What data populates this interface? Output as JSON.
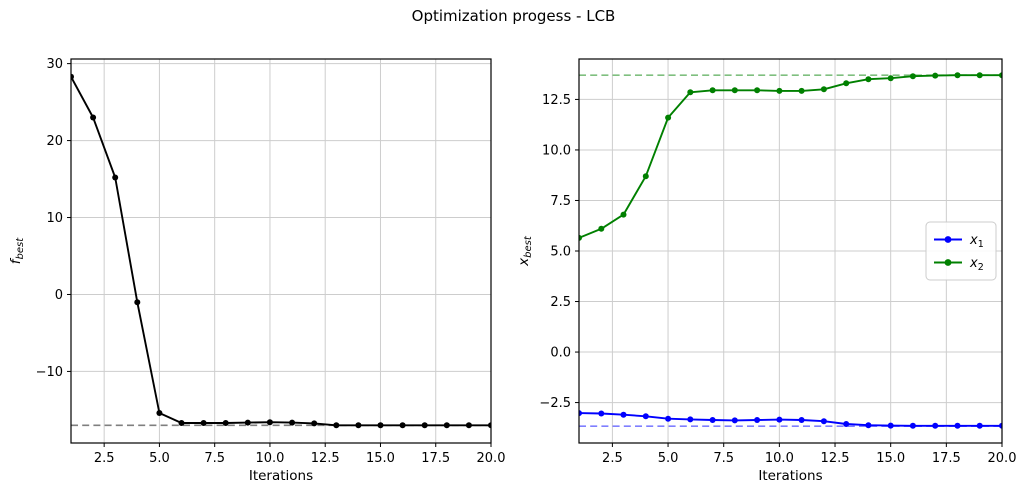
{
  "title": "Optimization progess - LCB",
  "chart_data": [
    {
      "type": "line",
      "name": "fbest-panel",
      "xlabel": "Iterations",
      "ylabel": "f_best",
      "x": [
        1,
        2,
        3,
        4,
        5,
        6,
        7,
        8,
        9,
        10,
        11,
        12,
        13,
        14,
        15,
        16,
        17,
        18,
        19,
        20
      ],
      "series": [
        {
          "name": "f_best",
          "color": "#000000",
          "values": [
            28.3,
            23.0,
            15.2,
            -1.0,
            -15.4,
            -16.7,
            -16.7,
            -16.7,
            -16.65,
            -16.6,
            -16.65,
            -16.75,
            -17.0,
            -17.0,
            -17.0,
            -17.0,
            -17.0,
            -17.0,
            -17.0,
            -17.0
          ]
        }
      ],
      "hlines": [
        {
          "y": -17.0,
          "color": "#000000",
          "opacity": 0.5,
          "style": "dashed"
        }
      ],
      "xlim": [
        1,
        20
      ],
      "ylim": [
        -19.3,
        30.6
      ],
      "xticks": [
        2.5,
        5.0,
        7.5,
        10.0,
        12.5,
        15.0,
        17.5,
        20.0
      ],
      "xtick_labels": [
        "2.5",
        "5.0",
        "7.5",
        "10.0",
        "12.5",
        "15.0",
        "17.5",
        "20.0"
      ],
      "yticks": [
        -10,
        0,
        10,
        20,
        30
      ],
      "ytick_labels": [
        "−10",
        "0",
        "10",
        "20",
        "30"
      ],
      "grid": true,
      "legend": null
    },
    {
      "type": "line",
      "name": "xbest-panel",
      "xlabel": "Iterations",
      "ylabel": "x_best",
      "x": [
        1,
        2,
        3,
        4,
        5,
        6,
        7,
        8,
        9,
        10,
        11,
        12,
        13,
        14,
        15,
        16,
        17,
        18,
        19,
        20
      ],
      "series": [
        {
          "name": "x_1",
          "color": "#0000ff",
          "values": [
            -3.02,
            -3.04,
            -3.1,
            -3.18,
            -3.3,
            -3.33,
            -3.36,
            -3.38,
            -3.36,
            -3.34,
            -3.36,
            -3.42,
            -3.56,
            -3.62,
            -3.64,
            -3.65,
            -3.65,
            -3.65,
            -3.65,
            -3.65
          ]
        },
        {
          "name": "x_2",
          "color": "#008000",
          "values": [
            5.65,
            6.1,
            6.8,
            8.7,
            11.6,
            12.85,
            12.95,
            12.95,
            12.95,
            12.92,
            12.92,
            13.0,
            13.3,
            13.5,
            13.55,
            13.65,
            13.68,
            13.7,
            13.7,
            13.7
          ]
        }
      ],
      "hlines": [
        {
          "y": 13.7,
          "color": "#008000",
          "opacity": 0.5,
          "style": "dashed"
        },
        {
          "y": -3.67,
          "color": "#0000ff",
          "opacity": 0.5,
          "style": "dashed"
        }
      ],
      "xlim": [
        1,
        20
      ],
      "ylim": [
        -4.5,
        14.5
      ],
      "xticks": [
        2.5,
        5.0,
        7.5,
        10.0,
        12.5,
        15.0,
        17.5,
        20.0
      ],
      "xtick_labels": [
        "2.5",
        "5.0",
        "7.5",
        "10.0",
        "12.5",
        "15.0",
        "17.5",
        "20.0"
      ],
      "yticks": [
        -2.5,
        0.0,
        2.5,
        5.0,
        7.5,
        10.0,
        12.5
      ],
      "ytick_labels": [
        "−2.5",
        "0.0",
        "2.5",
        "5.0",
        "7.5",
        "10.0",
        "12.5"
      ],
      "grid": true,
      "legend": {
        "entries": [
          "x_1",
          "x_2"
        ],
        "position": "center right"
      }
    }
  ],
  "style": {
    "grid_color": "#cdcdcd",
    "spine_color": "#000000",
    "tick_color": "#000000",
    "legend_border": "#cccccc",
    "background": "#ffffff"
  }
}
